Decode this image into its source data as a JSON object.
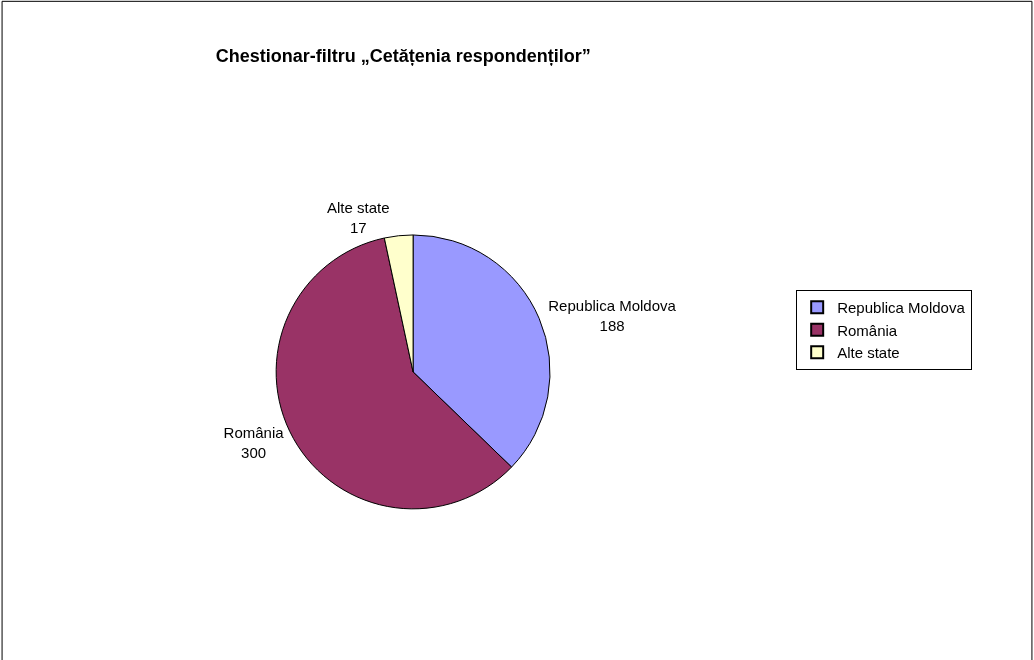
{
  "chart_data": {
    "type": "pie",
    "title": "Chestionar-filtru „Cetățenia respondenților”",
    "categories": [
      "Republica Moldova",
      "România",
      "Alte state"
    ],
    "values": [
      188,
      300,
      17
    ],
    "colors": [
      "#9999ff",
      "#993366",
      "#ffffcc"
    ],
    "data_labels": true,
    "legend": "right"
  }
}
